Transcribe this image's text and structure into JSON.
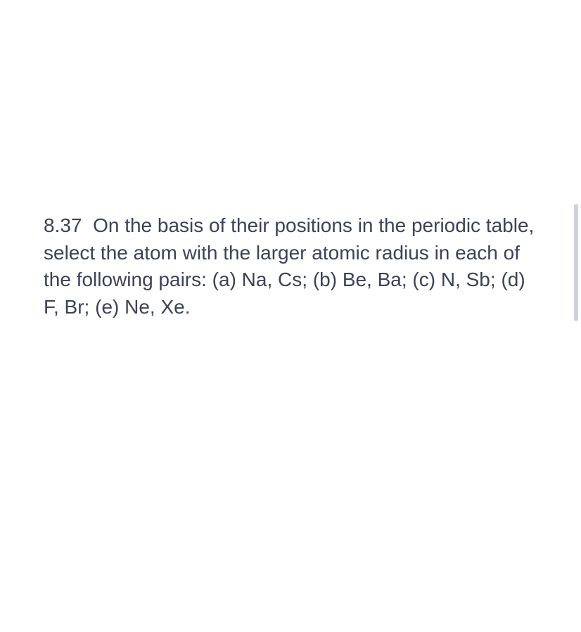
{
  "question": {
    "number": "8.37",
    "text": "On the basis of their positions in the periodic table, select the atom with the larger atomic radius in each of the following pairs: (a) Na, Cs; (b) Be, Ba; (c) N, Sb; (d) F, Br; (e) Ne, Xe."
  },
  "styling": {
    "text_color": "#3c4257",
    "background_color": "#ffffff",
    "scrollbar_color": "#cdd2d8",
    "font_size": 28,
    "line_height": 1.38
  }
}
